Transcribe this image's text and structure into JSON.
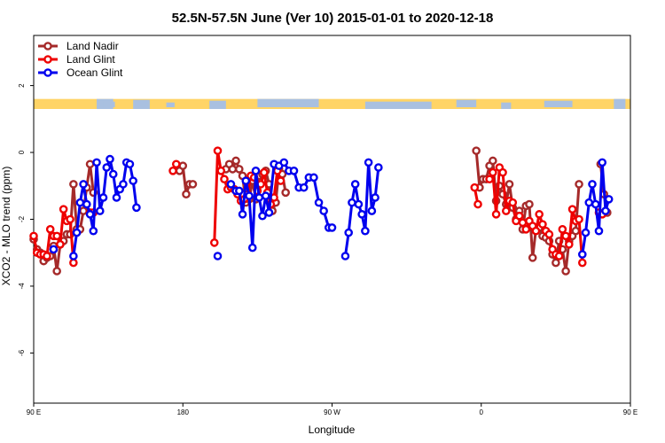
{
  "chart_data": {
    "type": "line",
    "title": "52.5N-57.5N June (Ver 10)   2015-01-01 to 2020-12-18",
    "xlabel": "Longitude",
    "ylabel": "XCO2 - MLO trend (ppm)",
    "xlim": [
      90,
      450
    ],
    "ylim": [
      -7.5,
      3.5
    ],
    "x_ticks": [
      {
        "value": 90,
        "label": "90 E"
      },
      {
        "value": 180,
        "label": "180"
      },
      {
        "value": 270,
        "label": "90 W"
      },
      {
        "value": 360,
        "label": "0"
      },
      {
        "value": 450,
        "label": "90 E"
      },
      {
        "value": 540,
        "label": "180"
      }
    ],
    "y_ticks": [
      {
        "value": -6,
        "label": "-6"
      },
      {
        "value": -4,
        "label": "-4"
      },
      {
        "value": -2,
        "label": "-2"
      },
      {
        "value": 0,
        "label": "0"
      },
      {
        "value": 2,
        "label": "2"
      }
    ],
    "grid": false,
    "legend_position": "top-left",
    "land_strip": {
      "y_from": 1.3,
      "y_to": 1.6,
      "land_color": "#ffd466",
      "ocean_color": "#a9c0e0"
    },
    "series": [
      {
        "name": "Land Nadir",
        "color": "#a52a2a",
        "segments": [
          [
            [
              90,
              -2.6
            ],
            [
              92,
              -2.9
            ],
            [
              94,
              -3.0
            ],
            [
              96,
              -3.25
            ],
            [
              98,
              -3.15
            ],
            [
              100,
              -3.1
            ],
            [
              102,
              -2.8
            ],
            [
              104,
              -3.55
            ],
            [
              106,
              -2.75
            ],
            [
              108,
              -2.65
            ],
            [
              110,
              -2.45
            ],
            [
              112,
              -2.45
            ],
            [
              114,
              -0.95
            ],
            [
              116,
              -2.3
            ],
            [
              118,
              -2.3
            ],
            [
              120,
              -1.75
            ],
            [
              122,
              -1.05
            ],
            [
              124,
              -0.35
            ],
            [
              126,
              -1.2
            ]
          ],
          [
            [
              178,
              -0.55
            ],
            [
              180,
              -0.4
            ],
            [
              182,
              -1.25
            ],
            [
              184,
              -0.95
            ],
            [
              186,
              -0.95
            ]
          ],
          [
            [
              206,
              -0.5
            ],
            [
              208,
              -0.35
            ],
            [
              210,
              -0.5
            ],
            [
              212,
              -0.25
            ],
            [
              214,
              -0.5
            ],
            [
              216,
              -0.7
            ],
            [
              218,
              -1.5
            ],
            [
              220,
              -1.4
            ],
            [
              222,
              -0.85
            ],
            [
              224,
              -1.4
            ],
            [
              226,
              -0.7
            ],
            [
              228,
              -0.65
            ],
            [
              230,
              -0.55
            ],
            [
              232,
              -0.95
            ],
            [
              234,
              -1.75
            ],
            [
              236,
              -1.5
            ],
            [
              238,
              -0.5
            ],
            [
              240,
              -0.65
            ],
            [
              242,
              -1.2
            ]
          ],
          [
            [
              357,
              0.05
            ],
            [
              359,
              -1.05
            ],
            [
              361,
              -0.8
            ],
            [
              363,
              -0.8
            ],
            [
              365,
              -0.4
            ],
            [
              367,
              -0.25
            ],
            [
              369,
              -1.45
            ],
            [
              371,
              -1.0
            ],
            [
              373,
              -1.25
            ],
            [
              375,
              -1.55
            ],
            [
              377,
              -0.95
            ],
            [
              379,
              -1.65
            ],
            [
              381,
              -2.0
            ],
            [
              383,
              -1.75
            ],
            [
              385,
              -2.3
            ],
            [
              387,
              -1.6
            ],
            [
              389,
              -1.55
            ],
            [
              391,
              -3.15
            ],
            [
              393,
              -2.3
            ],
            [
              395,
              -2.25
            ],
            [
              397,
              -2.5
            ],
            [
              399,
              -2.55
            ],
            [
              401,
              -2.65
            ],
            [
              403,
              -3.05
            ],
            [
              405,
              -3.3
            ],
            [
              407,
              -2.65
            ],
            [
              409,
              -2.9
            ],
            [
              411,
              -3.55
            ],
            [
              413,
              -2.65
            ],
            [
              415,
              -2.5
            ],
            [
              417,
              -2.35
            ],
            [
              419,
              -0.95
            ]
          ],
          [
            [
              432,
              -0.35
            ],
            [
              434,
              -1.25
            ],
            [
              436,
              -1.8
            ]
          ]
        ]
      },
      {
        "name": "Land Glint",
        "color": "#ee0000",
        "segments": [
          [
            [
              90,
              -2.5
            ],
            [
              92,
              -3.0
            ],
            [
              94,
              -3.05
            ],
            [
              96,
              -3.05
            ],
            [
              98,
              -3.1
            ],
            [
              100,
              -2.3
            ],
            [
              102,
              -2.5
            ],
            [
              104,
              -2.5
            ],
            [
              106,
              -2.75
            ],
            [
              108,
              -1.7
            ],
            [
              110,
              -2.05
            ],
            [
              112,
              -2.0
            ],
            [
              114,
              -3.3
            ]
          ],
          [
            [
              124,
              -1.8
            ],
            [
              126,
              -1.8
            ]
          ],
          [
            [
              174,
              -0.55
            ],
            [
              176,
              -0.35
            ]
          ],
          [
            [
              199,
              -2.7
            ],
            [
              201,
              0.05
            ],
            [
              203,
              -0.55
            ],
            [
              205,
              -0.8
            ],
            [
              207,
              -1.1
            ],
            [
              209,
              -1.05
            ],
            [
              211,
              -1.1
            ],
            [
              213,
              -1.25
            ],
            [
              215,
              -1.45
            ],
            [
              217,
              -1.4
            ],
            [
              219,
              -1.25
            ],
            [
              221,
              -0.7
            ],
            [
              223,
              -0.75
            ],
            [
              225,
              -1.15
            ],
            [
              227,
              -0.95
            ],
            [
              229,
              -0.6
            ],
            [
              231,
              -1.2
            ],
            [
              233,
              -1.55
            ],
            [
              235,
              -1.35
            ],
            [
              237,
              -0.55
            ],
            [
              239,
              -0.85
            ]
          ],
          [
            [
              356,
              -1.05
            ],
            [
              358,
              -1.55
            ]
          ],
          [
            [
              365,
              -0.8
            ],
            [
              367,
              -0.6
            ],
            [
              369,
              -1.85
            ],
            [
              371,
              -0.45
            ],
            [
              373,
              -0.6
            ],
            [
              375,
              -1.75
            ],
            [
              377,
              -1.45
            ],
            [
              379,
              -1.5
            ],
            [
              381,
              -2.05
            ],
            [
              383,
              -1.9
            ],
            [
              385,
              -2.1
            ],
            [
              387,
              -2.3
            ],
            [
              389,
              -2.05
            ],
            [
              391,
              -2.2
            ],
            [
              393,
              -2.35
            ],
            [
              395,
              -1.85
            ],
            [
              397,
              -2.15
            ],
            [
              399,
              -2.35
            ],
            [
              401,
              -2.45
            ],
            [
              403,
              -2.9
            ],
            [
              405,
              -3.05
            ],
            [
              407,
              -3.1
            ],
            [
              409,
              -2.3
            ],
            [
              411,
              -2.5
            ],
            [
              413,
              -2.75
            ],
            [
              415,
              -1.7
            ],
            [
              417,
              -2.05
            ],
            [
              419,
              -2.0
            ],
            [
              421,
              -3.3
            ]
          ],
          [
            [
              431,
              -1.8
            ],
            [
              433,
              -1.85
            ]
          ]
        ]
      },
      {
        "name": "Ocean Glint",
        "color": "#0000ee",
        "segments": [
          [
            [
              102,
              -2.9
            ]
          ],
          [
            [
              114,
              -3.1
            ],
            [
              116,
              -2.4
            ],
            [
              118,
              -1.5
            ],
            [
              120,
              -0.95
            ],
            [
              122,
              -1.55
            ],
            [
              124,
              -1.85
            ],
            [
              126,
              -2.35
            ],
            [
              128,
              -0.3
            ],
            [
              130,
              -1.75
            ],
            [
              132,
              -1.35
            ],
            [
              134,
              -0.45
            ],
            [
              136,
              -0.2
            ],
            [
              138,
              -0.65
            ],
            [
              140,
              -1.35
            ],
            [
              142,
              -1.1
            ],
            [
              144,
              -0.95
            ],
            [
              146,
              -0.3
            ],
            [
              148,
              -0.35
            ],
            [
              150,
              -0.85
            ],
            [
              152,
              -1.65
            ]
          ],
          [
            [
              201,
              -3.1
            ]
          ],
          [
            [
              209,
              -0.95
            ],
            [
              212,
              -1.15
            ],
            [
              214,
              -1.15
            ],
            [
              216,
              -1.85
            ],
            [
              218,
              -0.85
            ],
            [
              220,
              -1.3
            ],
            [
              222,
              -2.85
            ],
            [
              224,
              -0.55
            ],
            [
              226,
              -1.35
            ],
            [
              228,
              -1.9
            ],
            [
              230,
              -1.3
            ],
            [
              232,
              -1.8
            ],
            [
              235,
              -0.35
            ],
            [
              238,
              -0.4
            ],
            [
              241,
              -0.3
            ],
            [
              244,
              -0.55
            ],
            [
              247,
              -0.55
            ],
            [
              250,
              -1.05
            ],
            [
              253,
              -1.05
            ],
            [
              256,
              -0.75
            ],
            [
              259,
              -0.75
            ],
            [
              262,
              -1.5
            ],
            [
              265,
              -1.75
            ],
            [
              268,
              -2.25
            ],
            [
              270,
              -2.25
            ]
          ],
          [
            [
              278,
              -3.1
            ],
            [
              280,
              -2.4
            ],
            [
              282,
              -1.5
            ],
            [
              284,
              -0.95
            ],
            [
              286,
              -1.55
            ],
            [
              288,
              -1.85
            ],
            [
              290,
              -2.35
            ],
            [
              292,
              -0.3
            ],
            [
              294,
              -1.75
            ],
            [
              296,
              -1.35
            ],
            [
              298,
              -0.45
            ]
          ],
          [
            [
              421,
              -3.05
            ],
            [
              423,
              -2.4
            ],
            [
              425,
              -1.5
            ],
            [
              427,
              -0.95
            ],
            [
              429,
              -1.55
            ],
            [
              431,
              -2.35
            ],
            [
              433,
              -0.3
            ],
            [
              435,
              -1.75
            ],
            [
              437,
              -1.4
            ]
          ]
        ]
      }
    ]
  }
}
